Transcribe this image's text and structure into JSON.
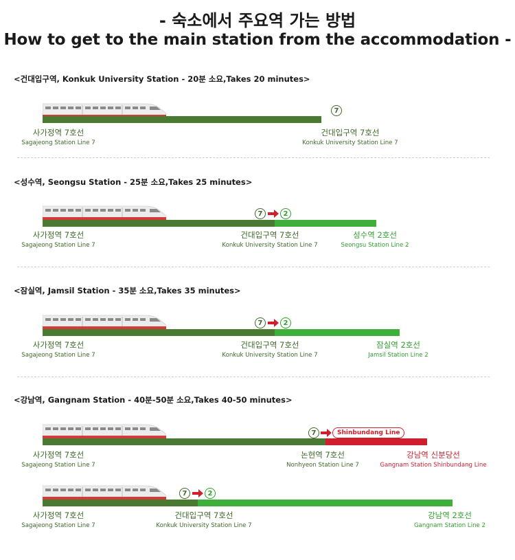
{
  "title": {
    "korean": "- 숙소에서 주요역 가는 방법",
    "english": "How to get to the main station from the accommodation -"
  },
  "routes": [
    {
      "heading": "<건대입구역, Konkuk University Station - 20분 소요,Takes 20 minutes>",
      "stops": [
        {
          "ko": "사가정역 7호선",
          "en": "Sagajeong Station Line 7",
          "line": "7"
        },
        {
          "ko": "건대입구역 7호선",
          "en": "Konkuk University Station Line 7",
          "line": "7"
        }
      ],
      "transfer": [
        "7"
      ]
    },
    {
      "heading": "<성수역, Seongsu Station - 25분 소요,Takes 25 minutes>",
      "stops": [
        {
          "ko": "사가정역 7호선",
          "en": "Sagajeong Station Line 7",
          "line": "7"
        },
        {
          "ko": "건대입구역 7호선",
          "en": "Konkuk University Station Line 7",
          "line": "7"
        },
        {
          "ko": "성수역 2호선",
          "en": "Seongsu Station Line 2",
          "line": "2"
        }
      ],
      "transfer": [
        "7",
        "2"
      ]
    },
    {
      "heading": "<잠실역, Jamsil Station - 35분 소요,Takes 35 minutes>",
      "stops": [
        {
          "ko": "사가정역 7호선",
          "en": "Sagajeong Station Line 7",
          "line": "7"
        },
        {
          "ko": "건대입구역 7호선",
          "en": "Konkuk University Station Line 7",
          "line": "7"
        },
        {
          "ko": "잠실역 2호선",
          "en": "Jamsil Station Line 2",
          "line": "2"
        }
      ],
      "transfer": [
        "7",
        "2"
      ]
    },
    {
      "heading": "<강남역, Gangnam Station - 40분-50분 소요,Takes 40-50 minutes>",
      "option_a": {
        "stops": [
          {
            "ko": "사가정역 7호선",
            "en": "Sagajeong Station Line 7",
            "line": "7"
          },
          {
            "ko": "논현역 7호선",
            "en": "Nonhyeon Station Line 7",
            "line": "7"
          },
          {
            "ko": "강남역 신분당선",
            "en": "Gangnam Station Shinbundang Line",
            "line": "Shinbundang"
          }
        ],
        "transfer_from": "7",
        "transfer_to_label": "Shinbundang Line"
      },
      "option_b": {
        "stops": [
          {
            "ko": "사가정역 7호선",
            "en": "Sagajeong Station Line 7",
            "line": "7"
          },
          {
            "ko": "건대입구역 7호선",
            "en": "Konkuk University Station Line 7",
            "line": "7"
          },
          {
            "ko": "강남역 2호선",
            "en": "Gangnam Station Line 2",
            "line": "2"
          }
        ],
        "transfer": [
          "7",
          "2"
        ]
      }
    }
  ],
  "colors": {
    "line7": "#4a7a32",
    "line2": "#3daf3a",
    "shinbundang": "#cf1f2c"
  },
  "icons": {
    "train": "train-icon",
    "arrow": "right-arrow-icon"
  }
}
